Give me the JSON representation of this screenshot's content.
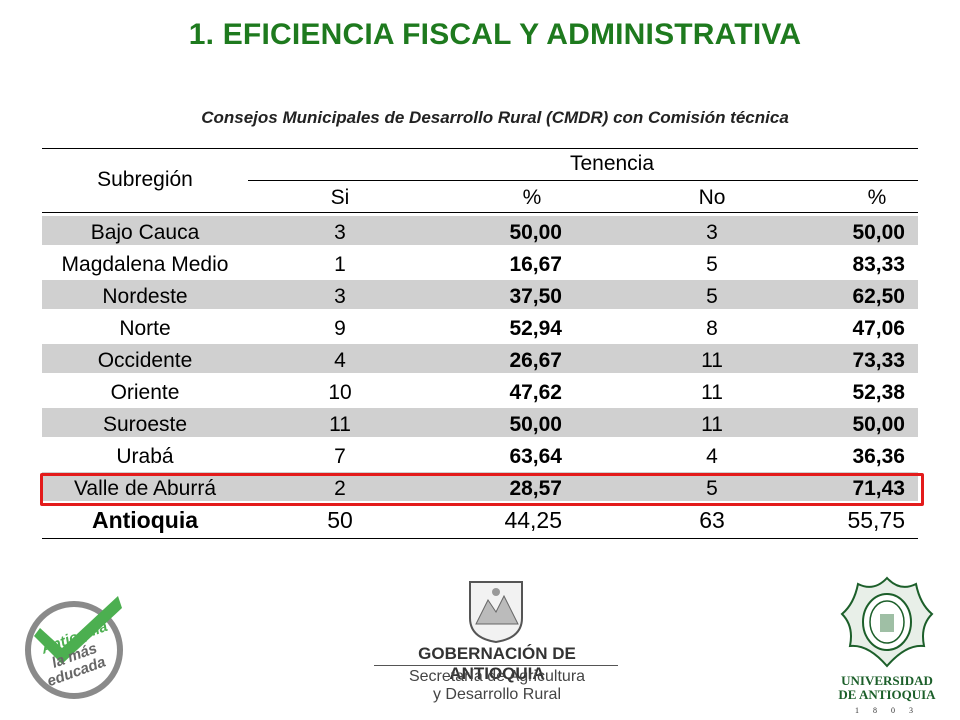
{
  "page": {
    "title": "1. EFICIENCIA FISCAL Y ADMINISTRATIVA",
    "subtitle": "Consejos Municipales de Desarrollo Rural (CMDR) con Comisión técnica"
  },
  "table": {
    "header": {
      "subregion": "Subregión",
      "group": "Tenencia",
      "si": "Si",
      "pct1": "%",
      "no": "No",
      "pct2": "%"
    },
    "rows": [
      {
        "name": "Bajo Cauca",
        "si": "3",
        "pct_si": "50,00",
        "no": "3",
        "pct_no": "50,00"
      },
      {
        "name": "Magdalena Medio",
        "si": "1",
        "pct_si": "16,67",
        "no": "5",
        "pct_no": "83,33"
      },
      {
        "name": "Nordeste",
        "si": "3",
        "pct_si": "37,50",
        "no": "5",
        "pct_no": "62,50"
      },
      {
        "name": "Norte",
        "si": "9",
        "pct_si": "52,94",
        "no": "8",
        "pct_no": "47,06"
      },
      {
        "name": "Occidente",
        "si": "4",
        "pct_si": "26,67",
        "no": "11",
        "pct_no": "73,33"
      },
      {
        "name": "Oriente",
        "si": "10",
        "pct_si": "47,62",
        "no": "11",
        "pct_no": "52,38"
      },
      {
        "name": "Suroeste",
        "si": "11",
        "pct_si": "50,00",
        "no": "11",
        "pct_no": "50,00"
      },
      {
        "name": "Urabá",
        "si": "7",
        "pct_si": "63,64",
        "no": "4",
        "pct_no": "36,36"
      },
      {
        "name": "Valle de Aburrá",
        "si": "2",
        "pct_si": "28,57",
        "no": "5",
        "pct_no": "71,43"
      }
    ],
    "total": {
      "name": "Antioquia",
      "si": "50",
      "pct_si": "44,25",
      "no": "63",
      "pct_no": "55,75"
    },
    "highlighted_row": "Valle de Aburrá",
    "colors": {
      "shade": "#d0d0d0",
      "highlight": "#e31b1b"
    }
  },
  "logos": {
    "left": {
      "line1": "Antioquia",
      "line2": "la más",
      "line3": "educada",
      "icon": "check-icon",
      "color": "#4caf50"
    },
    "center": {
      "name": "GOBERNACIÓN DE ANTIOQUIA",
      "sec1": "Secretaría de Agricultura",
      "sec2": "y Desarrollo Rural"
    },
    "right": {
      "name1": "UNIVERSIDAD",
      "name2": "DE ANTIOQUIA",
      "year": "1 8 0 3",
      "color": "#1c5f2a"
    }
  },
  "colors": {
    "title": "#1e7a1e"
  }
}
